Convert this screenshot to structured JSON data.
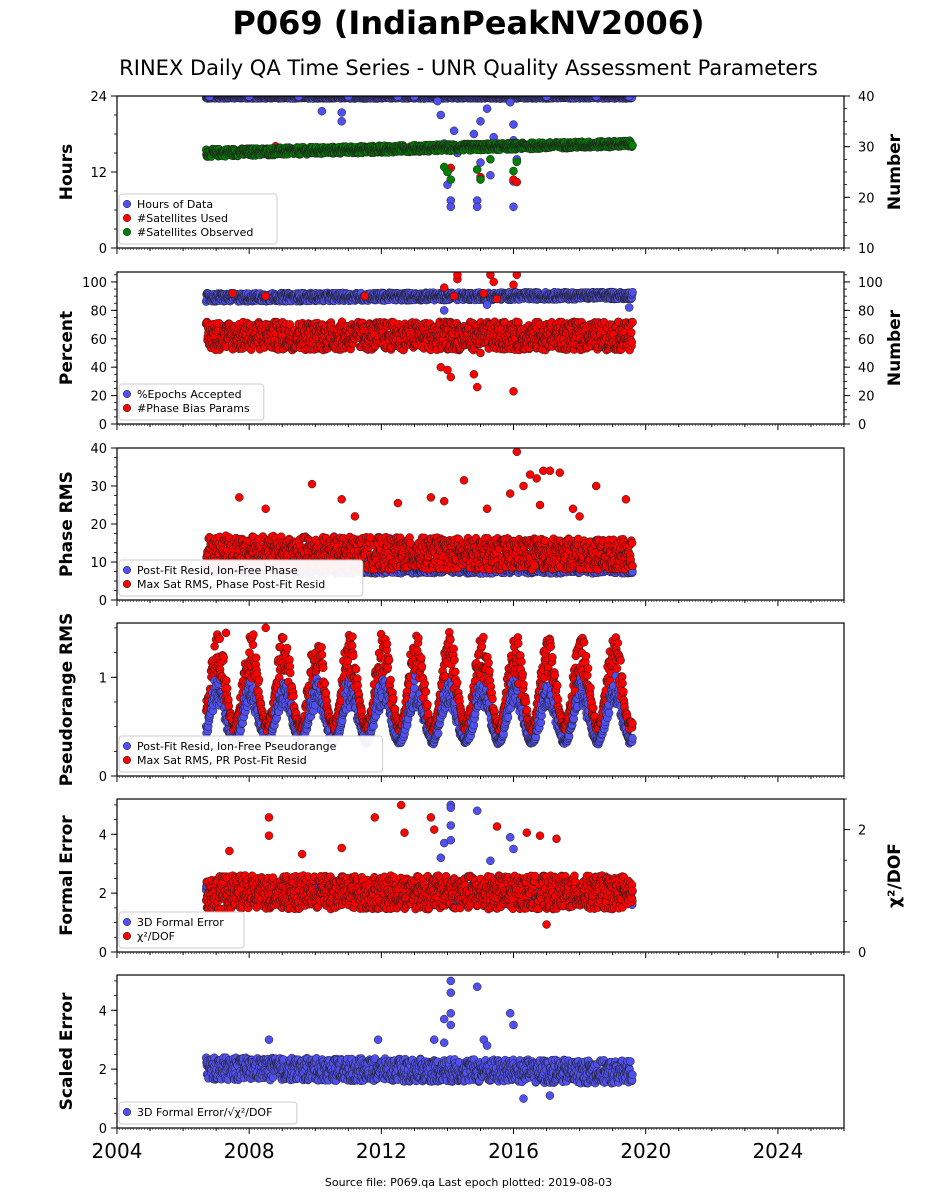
{
  "header": {
    "title": "P069 (IndianPeakNV2006)",
    "subtitle": "RINEX Daily QA Time Series - UNR Quality Assessment Parameters"
  },
  "footer": {
    "text": "Source file: P069.qa Last epoch plotted: 2019-08-03"
  },
  "colors": {
    "blue": "#5050f0",
    "red": "#ff0000",
    "green": "#008000"
  },
  "chart_data": [
    {
      "type": "scatter",
      "id": "hours",
      "ylabel": "Hours",
      "ylim": [
        0,
        24
      ],
      "yticks": [
        0,
        12,
        24
      ],
      "right_axis": {
        "label": "Number",
        "lim": [
          10,
          40
        ],
        "ticks": [
          10,
          20,
          30,
          40
        ]
      },
      "x_range": [
        2004,
        2026
      ],
      "xticks": [
        2004,
        2008,
        2012,
        2016,
        2020,
        2024
      ],
      "legend": {
        "placement": "lower-left",
        "entries": [
          "Hours of Data",
          "#Satellites Used",
          "#Satellites Observed"
        ]
      },
      "series": [
        {
          "name": "Hours of Data",
          "axis": "left",
          "color": "blue",
          "points": [
            [
              2006.8,
              23.9
            ],
            [
              2008.0,
              23.9
            ],
            [
              2009.5,
              23.9
            ],
            [
              2010.2,
              21.6
            ],
            [
              2010.8,
              21.4
            ],
            [
              2010.8,
              20.0
            ],
            [
              2011.0,
              23.9
            ],
            [
              2012.5,
              23.9
            ],
            [
              2013.0,
              23.9
            ],
            [
              2013.7,
              23.2
            ],
            [
              2013.8,
              21.0
            ],
            [
              2013.9,
              16.5
            ],
            [
              2014.0,
              12.0
            ],
            [
              2014.0,
              10.0
            ],
            [
              2014.1,
              7.5
            ],
            [
              2014.1,
              6.5
            ],
            [
              2014.2,
              18.5
            ],
            [
              2014.3,
              15.0
            ],
            [
              2014.8,
              18.0
            ],
            [
              2014.9,
              7.5
            ],
            [
              2014.9,
              6.5
            ],
            [
              2015.0,
              13.5
            ],
            [
              2015.0,
              20.0
            ],
            [
              2015.2,
              22.0
            ],
            [
              2015.3,
              11.5
            ],
            [
              2015.4,
              17.5
            ],
            [
              2015.5,
              15.5
            ],
            [
              2015.9,
              23.0
            ],
            [
              2016.0,
              19.5
            ],
            [
              2016.0,
              17.0
            ],
            [
              2016.0,
              10.5
            ],
            [
              2016.1,
              14.0
            ],
            [
              2016.0,
              6.5
            ],
            [
              2017.0,
              23.9
            ],
            [
              2018.5,
              23.9
            ],
            [
              2019.5,
              23.9
            ]
          ]
        },
        {
          "name": "#Satellites Used",
          "axis": "right",
          "color": "red",
          "points": [
            [
              2008.8,
              30.1
            ],
            [
              2014.0,
              25.2
            ],
            [
              2014.1,
              25.8
            ],
            [
              2015.0,
              24.0
            ],
            [
              2016.0,
              23.5
            ],
            [
              2016.1,
              23.0
            ]
          ]
        },
        {
          "name": "#Satellites Observed",
          "axis": "right",
          "color": "green",
          "band": {
            "from": 2006.7,
            "to": 2019.6,
            "start": [
              28.0,
              29.5
            ],
            "end": [
              30.0,
              31.2
            ]
          },
          "points": [
            [
              2013.9,
              26.0
            ],
            [
              2014.0,
              25.0
            ],
            [
              2014.1,
              23.5
            ],
            [
              2014.9,
              25.5
            ],
            [
              2015.0,
              23.5
            ],
            [
              2016.0,
              25.2
            ],
            [
              2016.1,
              27.0
            ],
            [
              2015.3,
              27.5
            ]
          ]
        }
      ]
    },
    {
      "type": "scatter",
      "id": "percent",
      "ylabel": "Percent",
      "ylim": [
        0,
        107
      ],
      "yticks": [
        0,
        20,
        40,
        60,
        80,
        100
      ],
      "right_axis": {
        "label": "Number",
        "lim": [
          0,
          107
        ],
        "ticks": [
          0,
          20,
          40,
          60,
          80,
          100
        ]
      },
      "x_range": [
        2004,
        2026
      ],
      "xticks": [
        2004,
        2008,
        2012,
        2016,
        2020,
        2024
      ],
      "legend": {
        "placement": "lower-left",
        "entries": [
          "%Epochs Accepted",
          "#Phase Bias Params"
        ]
      },
      "series": [
        {
          "name": "%Epochs Accepted",
          "axis": "left",
          "color": "blue",
          "band": {
            "from": 2006.7,
            "to": 2019.6,
            "start": [
              86,
              92
            ],
            "end": [
              88,
              93
            ]
          },
          "points": [
            [
              2019.5,
              82
            ],
            [
              2013.9,
              80
            ],
            [
              2015.2,
              84
            ]
          ]
        },
        {
          "name": "#Phase Bias Params",
          "axis": "right",
          "color": "red",
          "band": {
            "from": 2006.7,
            "to": 2019.6,
            "start": [
              52,
              72
            ],
            "end": [
              52,
              72
            ]
          },
          "points": [
            [
              2007.5,
              92
            ],
            [
              2008.5,
              90
            ],
            [
              2011.5,
              90
            ],
            [
              2013.8,
              40
            ],
            [
              2014.0,
              38
            ],
            [
              2014.1,
              33
            ],
            [
              2014.3,
              102
            ],
            [
              2014.3,
              105
            ],
            [
              2014.8,
              35
            ],
            [
              2014.9,
              26
            ],
            [
              2015.0,
              50
            ],
            [
              2015.3,
              105
            ],
            [
              2015.4,
              100
            ],
            [
              2016.0,
              23
            ],
            [
              2016.1,
              105
            ],
            [
              2016.0,
              98
            ],
            [
              2013.9,
              96
            ],
            [
              2014.2,
              90
            ],
            [
              2015.1,
              92
            ],
            [
              2015.5,
              88
            ]
          ]
        }
      ]
    },
    {
      "type": "scatter",
      "id": "phase",
      "ylabel": "Phase RMS",
      "ylim": [
        0,
        40
      ],
      "yticks": [
        0,
        10,
        20,
        30,
        40
      ],
      "x_range": [
        2004,
        2026
      ],
      "xticks": [
        2004,
        2008,
        2012,
        2016,
        2020,
        2024
      ],
      "legend": {
        "placement": "lower-left",
        "entries": [
          "Post-Fit Resid, Ion-Free Phase",
          "Max Sat RMS, Phase Post-Fit Resid"
        ]
      },
      "series": [
        {
          "name": "Post-Fit Resid, Ion-Free Phase",
          "axis": "left",
          "color": "blue",
          "band": {
            "from": 2006.7,
            "to": 2019.6,
            "start": [
              7,
              10
            ],
            "end": [
              7,
              10
            ]
          },
          "points": []
        },
        {
          "name": "Max Sat RMS, Phase Post-Fit Resid",
          "axis": "left",
          "color": "red",
          "band": {
            "from": 2006.7,
            "to": 2019.6,
            "start": [
              8,
              17
            ],
            "end": [
              8,
              16
            ]
          },
          "points": [
            [
              2007.7,
              27
            ],
            [
              2009.9,
              30.5
            ],
            [
              2010.8,
              26.5
            ],
            [
              2012.5,
              25.5
            ],
            [
              2013.5,
              27
            ],
            [
              2014.5,
              31.5
            ],
            [
              2015.9,
              28
            ],
            [
              2016.1,
              39
            ],
            [
              2016.3,
              30
            ],
            [
              2016.5,
              33
            ],
            [
              2016.7,
              32
            ],
            [
              2016.9,
              34
            ],
            [
              2017.1,
              34
            ],
            [
              2017.4,
              33.5
            ],
            [
              2018.5,
              30
            ],
            [
              2019.4,
              26.5
            ],
            [
              2013.9,
              26
            ],
            [
              2015.2,
              24
            ],
            [
              2008.5,
              24
            ],
            [
              2011.2,
              22
            ],
            [
              2016.8,
              25
            ],
            [
              2017.8,
              24
            ],
            [
              2018.0,
              22
            ]
          ]
        }
      ]
    },
    {
      "type": "scatter",
      "id": "pseudorange",
      "ylabel": "Pseudorange RMS",
      "ylim": [
        0,
        1.55
      ],
      "yticks": [
        0,
        1
      ],
      "x_range": [
        2004,
        2026
      ],
      "xticks": [
        2004,
        2008,
        2012,
        2016,
        2020,
        2024
      ],
      "legend": {
        "placement": "lower-left",
        "entries": [
          "Post-Fit Resid, Ion-Free Pseudorange",
          "Max Sat RMS, PR Post-Fit Resid"
        ]
      },
      "seasonal": {
        "from": 2006.7,
        "to": 2019.6,
        "period": 1.0,
        "blue": [
          0.35,
          1.0
        ],
        "red": [
          0.5,
          1.45
        ]
      },
      "series": [
        {
          "name": "Post-Fit Resid, Ion-Free Pseudorange",
          "axis": "left",
          "color": "blue",
          "points": []
        },
        {
          "name": "Max Sat RMS, PR Post-Fit Resid",
          "axis": "left",
          "color": "red",
          "points": [
            [
              2008.5,
              1.5
            ],
            [
              2007.3,
              1.45
            ]
          ]
        }
      ]
    },
    {
      "type": "scatter",
      "id": "formal",
      "ylabel": "Formal Error",
      "ylim": [
        0,
        5.2
      ],
      "yticks": [
        0,
        2,
        4
      ],
      "right_axis": {
        "label": "χ²/DOF",
        "lim": [
          0,
          2.5
        ],
        "ticks": [
          0,
          2
        ]
      },
      "x_range": [
        2004,
        2026
      ],
      "xticks": [
        2004,
        2008,
        2012,
        2016,
        2020,
        2024
      ],
      "legend": {
        "placement": "lower-left",
        "entries": [
          "3D Formal Error",
          "χ²/DOF"
        ]
      },
      "series": [
        {
          "name": "3D Formal Error",
          "axis": "left",
          "color": "blue",
          "band": {
            "from": 2006.7,
            "to": 2019.6,
            "start": [
              1.7,
              2.4
            ],
            "end": [
              1.6,
              2.3
            ]
          },
          "points": [
            [
              2014.1,
              5.0
            ],
            [
              2014.1,
              4.9
            ],
            [
              2014.9,
              4.8
            ],
            [
              2014.1,
              4.3
            ],
            [
              2013.9,
              3.7
            ],
            [
              2014.1,
              3.8
            ],
            [
              2015.9,
              3.9
            ],
            [
              2016.0,
              3.5
            ],
            [
              2015.3,
              3.1
            ],
            [
              2013.8,
              3.2
            ]
          ]
        },
        {
          "name": "χ²/DOF",
          "axis": "right",
          "color": "red",
          "band": {
            "from": 2006.7,
            "to": 2019.6,
            "start": [
              0.7,
              1.25
            ],
            "end": [
              0.7,
              1.25
            ]
          },
          "points": [
            [
              2008.6,
              2.2
            ],
            [
              2008.6,
              1.9
            ],
            [
              2011.8,
              2.2
            ],
            [
              2012.6,
              2.4
            ],
            [
              2012.7,
              1.95
            ],
            [
              2013.5,
              2.2
            ],
            [
              2013.6,
              2.0
            ],
            [
              2015.5,
              2.05
            ],
            [
              2016.4,
              1.95
            ],
            [
              2017.3,
              1.85
            ],
            [
              2009.6,
              1.6
            ],
            [
              2010.8,
              1.7
            ],
            [
              2007.4,
              1.65
            ],
            [
              2017.0,
              0.45
            ],
            [
              2016.8,
              1.9
            ]
          ]
        }
      ]
    },
    {
      "type": "scatter",
      "id": "scaled",
      "ylabel": "Scaled Error",
      "ylim": [
        0,
        5.2
      ],
      "yticks": [
        0,
        2,
        4
      ],
      "x_range": [
        2004,
        2026
      ],
      "xticks": [
        2004,
        2008,
        2012,
        2016,
        2020,
        2024
      ],
      "legend": {
        "placement": "lower-left",
        "entries": [
          "3D Formal Error/√χ²/DOF"
        ]
      },
      "series": [
        {
          "name": "3D Formal Error/√χ²/DOF",
          "axis": "left",
          "color": "blue",
          "band": {
            "from": 2006.7,
            "to": 2019.6,
            "start": [
              1.65,
              2.4
            ],
            "end": [
              1.5,
              2.3
            ]
          },
          "points": [
            [
              2014.1,
              5.0
            ],
            [
              2014.1,
              4.6
            ],
            [
              2014.9,
              4.8
            ],
            [
              2014.1,
              3.9
            ],
            [
              2013.9,
              3.7
            ],
            [
              2014.1,
              3.5
            ],
            [
              2015.9,
              3.9
            ],
            [
              2016.0,
              3.5
            ],
            [
              2008.6,
              3.0
            ],
            [
              2011.9,
              3.0
            ],
            [
              2013.6,
              3.0
            ],
            [
              2015.1,
              3.0
            ],
            [
              2016.3,
              1.0
            ],
            [
              2017.1,
              1.1
            ],
            [
              2013.9,
              2.9
            ],
            [
              2015.2,
              2.8
            ]
          ]
        }
      ]
    }
  ]
}
